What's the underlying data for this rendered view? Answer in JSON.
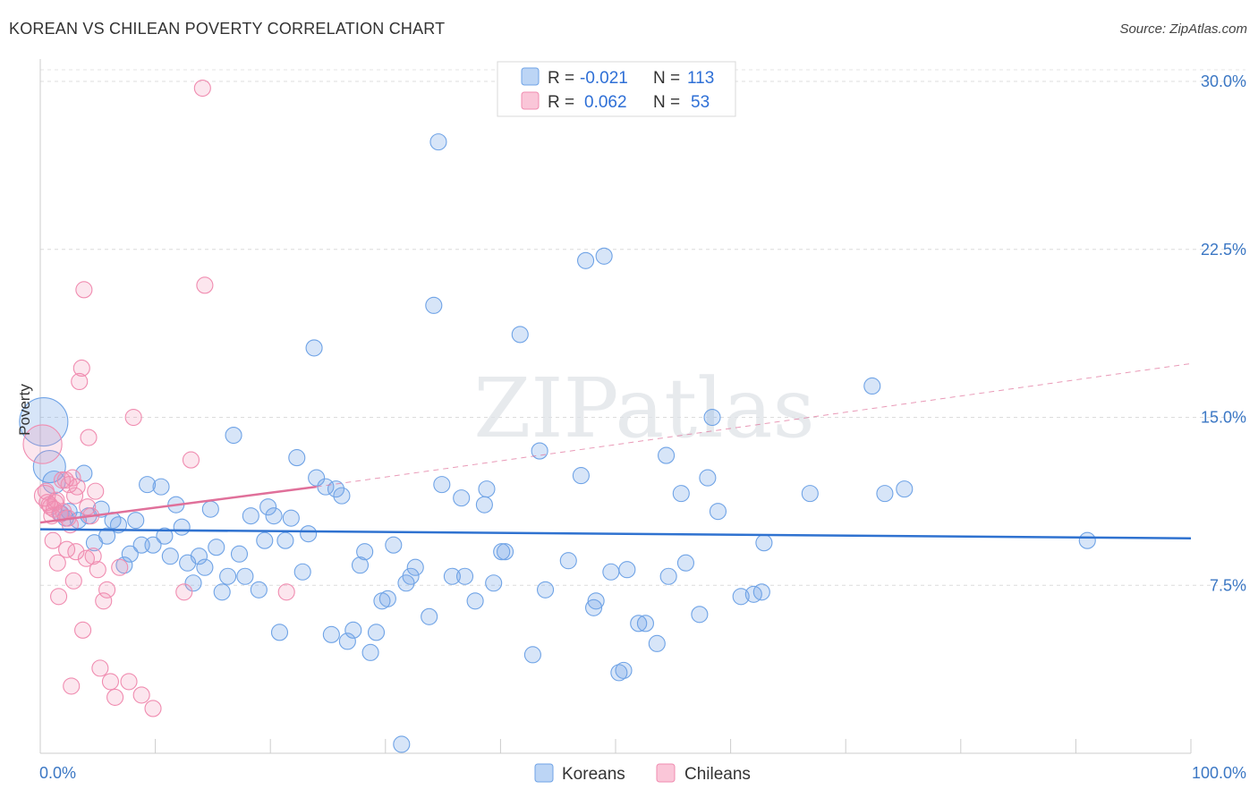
{
  "header": {
    "title": "KOREAN VS CHILEAN POVERTY CORRELATION CHART",
    "source": "Source: ZipAtlas.com"
  },
  "colors": {
    "korean": "#6fa3e6",
    "chilean": "#f08cb0",
    "korean_line": "#2f72d0",
    "chilean_line": "#e0709a",
    "tick": "#3b77c4"
  },
  "watermark": "ZIPatlas",
  "chart_data": {
    "type": "scatter",
    "title": "KOREAN VS CHILEAN POVERTY CORRELATION CHART",
    "xlabel": "",
    "ylabel": "Poverty",
    "xlim": [
      0,
      100
    ],
    "ylim": [
      0,
      31
    ],
    "x_tick_labels": [
      "0.0%",
      "100.0%"
    ],
    "y_ticks": [
      7.5,
      15.0,
      22.5,
      30.0
    ],
    "y_tick_labels": [
      "7.5%",
      "15.0%",
      "22.5%",
      "30.0%"
    ],
    "legend": {
      "position": "top-center",
      "entries": [
        {
          "r_label": "R =",
          "r_value": "-0.021",
          "n_label": "N =",
          "n_value": "113"
        },
        {
          "r_label": "R =",
          "r_value": "0.062",
          "n_label": "N =",
          "n_value": "53"
        }
      ]
    },
    "series": [
      {
        "name": "Koreans",
        "trend": {
          "x": [
            0,
            100
          ],
          "y": [
            10.0,
            9.6
          ]
        },
        "points": [
          {
            "x": 0.3,
            "y": 14.8,
            "s": 3
          },
          {
            "x": 0.8,
            "y": 12.8,
            "s": 2
          },
          {
            "x": 1.2,
            "y": 12.1,
            "s": 1.4
          },
          {
            "x": 1.8,
            "y": 10.7
          },
          {
            "x": 2.2,
            "y": 10.5
          },
          {
            "x": 2.5,
            "y": 10.8
          },
          {
            "x": 3.3,
            "y": 10.4
          },
          {
            "x": 3.8,
            "y": 12.5
          },
          {
            "x": 4.2,
            "y": 10.6
          },
          {
            "x": 4.7,
            "y": 9.4
          },
          {
            "x": 5.3,
            "y": 10.9
          },
          {
            "x": 5.8,
            "y": 9.7
          },
          {
            "x": 6.3,
            "y": 10.4
          },
          {
            "x": 6.8,
            "y": 10.2
          },
          {
            "x": 7.3,
            "y": 8.4
          },
          {
            "x": 7.8,
            "y": 8.9
          },
          {
            "x": 8.3,
            "y": 10.4
          },
          {
            "x": 8.8,
            "y": 9.3
          },
          {
            "x": 9.3,
            "y": 12.0
          },
          {
            "x": 9.8,
            "y": 9.3
          },
          {
            "x": 10.5,
            "y": 11.9
          },
          {
            "x": 10.8,
            "y": 9.7
          },
          {
            "x": 11.3,
            "y": 8.8
          },
          {
            "x": 11.8,
            "y": 11.1
          },
          {
            "x": 12.3,
            "y": 10.1
          },
          {
            "x": 12.8,
            "y": 8.5
          },
          {
            "x": 13.3,
            "y": 7.6
          },
          {
            "x": 13.8,
            "y": 8.8
          },
          {
            "x": 14.3,
            "y": 8.3
          },
          {
            "x": 14.8,
            "y": 10.9
          },
          {
            "x": 15.3,
            "y": 9.2
          },
          {
            "x": 15.8,
            "y": 7.2
          },
          {
            "x": 16.3,
            "y": 7.9
          },
          {
            "x": 16.8,
            "y": 14.2
          },
          {
            "x": 17.3,
            "y": 8.9
          },
          {
            "x": 17.8,
            "y": 7.9
          },
          {
            "x": 18.3,
            "y": 10.6
          },
          {
            "x": 19.0,
            "y": 7.3
          },
          {
            "x": 19.5,
            "y": 9.5
          },
          {
            "x": 19.8,
            "y": 11.0
          },
          {
            "x": 20.3,
            "y": 10.6
          },
          {
            "x": 20.8,
            "y": 5.4
          },
          {
            "x": 21.3,
            "y": 9.5
          },
          {
            "x": 21.8,
            "y": 10.5
          },
          {
            "x": 22.3,
            "y": 13.2
          },
          {
            "x": 22.8,
            "y": 8.1
          },
          {
            "x": 23.3,
            "y": 9.8
          },
          {
            "x": 23.8,
            "y": 18.1
          },
          {
            "x": 24.0,
            "y": 12.3
          },
          {
            "x": 24.8,
            "y": 11.9
          },
          {
            "x": 25.3,
            "y": 5.3
          },
          {
            "x": 25.7,
            "y": 11.8
          },
          {
            "x": 26.2,
            "y": 11.5
          },
          {
            "x": 26.7,
            "y": 5.0
          },
          {
            "x": 27.2,
            "y": 5.5
          },
          {
            "x": 27.8,
            "y": 8.4
          },
          {
            "x": 28.2,
            "y": 9.0
          },
          {
            "x": 28.7,
            "y": 4.5
          },
          {
            "x": 29.2,
            "y": 5.4
          },
          {
            "x": 29.7,
            "y": 6.8
          },
          {
            "x": 30.2,
            "y": 6.9
          },
          {
            "x": 30.7,
            "y": 9.3
          },
          {
            "x": 31.4,
            "y": 0.4
          },
          {
            "x": 31.8,
            "y": 7.6
          },
          {
            "x": 32.2,
            "y": 7.9
          },
          {
            "x": 32.6,
            "y": 8.3
          },
          {
            "x": 33.8,
            "y": 6.1
          },
          {
            "x": 34.2,
            "y": 20.0
          },
          {
            "x": 34.6,
            "y": 27.3
          },
          {
            "x": 34.9,
            "y": 12.0
          },
          {
            "x": 35.8,
            "y": 7.9
          },
          {
            "x": 36.6,
            "y": 11.4
          },
          {
            "x": 36.9,
            "y": 7.9
          },
          {
            "x": 37.8,
            "y": 6.8
          },
          {
            "x": 38.6,
            "y": 11.1
          },
          {
            "x": 38.8,
            "y": 11.8
          },
          {
            "x": 39.4,
            "y": 7.6
          },
          {
            "x": 40.1,
            "y": 9.0
          },
          {
            "x": 40.4,
            "y": 9.0
          },
          {
            "x": 41.7,
            "y": 18.7
          },
          {
            "x": 42.8,
            "y": 4.4
          },
          {
            "x": 43.4,
            "y": 13.5
          },
          {
            "x": 43.9,
            "y": 7.3
          },
          {
            "x": 45.9,
            "y": 8.6
          },
          {
            "x": 47.0,
            "y": 12.4
          },
          {
            "x": 47.4,
            "y": 22.0
          },
          {
            "x": 48.1,
            "y": 6.5
          },
          {
            "x": 48.3,
            "y": 6.8
          },
          {
            "x": 49.0,
            "y": 22.2
          },
          {
            "x": 49.6,
            "y": 8.1
          },
          {
            "x": 50.3,
            "y": 3.6
          },
          {
            "x": 50.7,
            "y": 3.7
          },
          {
            "x": 51.0,
            "y": 8.2
          },
          {
            "x": 52.0,
            "y": 5.8
          },
          {
            "x": 52.6,
            "y": 5.8
          },
          {
            "x": 53.6,
            "y": 4.9
          },
          {
            "x": 54.4,
            "y": 13.3
          },
          {
            "x": 54.6,
            "y": 7.9
          },
          {
            "x": 55.7,
            "y": 11.6
          },
          {
            "x": 56.1,
            "y": 8.5
          },
          {
            "x": 57.3,
            "y": 6.2
          },
          {
            "x": 58.0,
            "y": 12.3
          },
          {
            "x": 58.4,
            "y": 15.0
          },
          {
            "x": 58.9,
            "y": 10.8
          },
          {
            "x": 60.9,
            "y": 7.0
          },
          {
            "x": 62.0,
            "y": 7.1
          },
          {
            "x": 62.7,
            "y": 7.2
          },
          {
            "x": 62.9,
            "y": 9.4
          },
          {
            "x": 66.9,
            "y": 11.6
          },
          {
            "x": 72.3,
            "y": 16.4
          },
          {
            "x": 73.4,
            "y": 11.6
          },
          {
            "x": 75.1,
            "y": 11.8
          },
          {
            "x": 91.0,
            "y": 9.5
          }
        ]
      },
      {
        "name": "Chileans",
        "trend": {
          "x": [
            0,
            24
          ],
          "y": [
            10.3,
            11.9
          ]
        },
        "trend_extension": {
          "x": [
            24,
            100
          ],
          "y": [
            11.9,
            17.4
          ]
        },
        "points": [
          {
            "x": 0.2,
            "y": 13.8,
            "s": 2.4
          },
          {
            "x": 0.4,
            "y": 11.5,
            "s": 1.3
          },
          {
            "x": 0.6,
            "y": 11.2
          },
          {
            "x": 0.9,
            "y": 11.0
          },
          {
            "x": 1.1,
            "y": 9.5
          },
          {
            "x": 1.3,
            "y": 11.2
          },
          {
            "x": 1.5,
            "y": 8.5
          },
          {
            "x": 1.6,
            "y": 7.0
          },
          {
            "x": 1.7,
            "y": 10.7
          },
          {
            "x": 1.9,
            "y": 12.2
          },
          {
            "x": 2.2,
            "y": 12.2
          },
          {
            "x": 2.3,
            "y": 9.1
          },
          {
            "x": 2.4,
            "y": 10.5
          },
          {
            "x": 2.6,
            "y": 10.2
          },
          {
            "x": 2.8,
            "y": 12.3
          },
          {
            "x": 2.9,
            "y": 7.7
          },
          {
            "x": 2.7,
            "y": 3.0
          },
          {
            "x": 3.1,
            "y": 9.0
          },
          {
            "x": 3.2,
            "y": 11.9
          },
          {
            "x": 3.4,
            "y": 16.6
          },
          {
            "x": 3.6,
            "y": 17.2
          },
          {
            "x": 3.7,
            "y": 5.5
          },
          {
            "x": 3.8,
            "y": 20.7
          },
          {
            "x": 4.0,
            "y": 8.7
          },
          {
            "x": 4.2,
            "y": 14.1
          },
          {
            "x": 4.4,
            "y": 10.6
          },
          {
            "x": 4.6,
            "y": 8.8
          },
          {
            "x": 4.8,
            "y": 11.7
          },
          {
            "x": 5.0,
            "y": 8.2
          },
          {
            "x": 5.2,
            "y": 3.8
          },
          {
            "x": 5.5,
            "y": 6.8
          },
          {
            "x": 5.8,
            "y": 7.3
          },
          {
            "x": 6.1,
            "y": 3.2
          },
          {
            "x": 6.5,
            "y": 2.5
          },
          {
            "x": 6.9,
            "y": 8.3
          },
          {
            "x": 7.7,
            "y": 3.2
          },
          {
            "x": 8.1,
            "y": 15.0
          },
          {
            "x": 8.8,
            "y": 2.6
          },
          {
            "x": 9.8,
            "y": 2.0
          },
          {
            "x": 12.5,
            "y": 7.2
          },
          {
            "x": 13.1,
            "y": 13.1
          },
          {
            "x": 14.1,
            "y": 29.7
          },
          {
            "x": 14.3,
            "y": 20.9
          },
          {
            "x": 21.4,
            "y": 7.2
          },
          {
            "x": 0.8,
            "y": 11.1
          },
          {
            "x": 1.4,
            "y": 11.3
          },
          {
            "x": 2.0,
            "y": 10.8
          },
          {
            "x": 3.0,
            "y": 11.5
          },
          {
            "x": 1.0,
            "y": 10.6
          },
          {
            "x": 2.5,
            "y": 12.0
          },
          {
            "x": 4.1,
            "y": 11.0
          },
          {
            "x": 0.5,
            "y": 11.7
          },
          {
            "x": 1.2,
            "y": 10.9
          }
        ]
      }
    ]
  }
}
